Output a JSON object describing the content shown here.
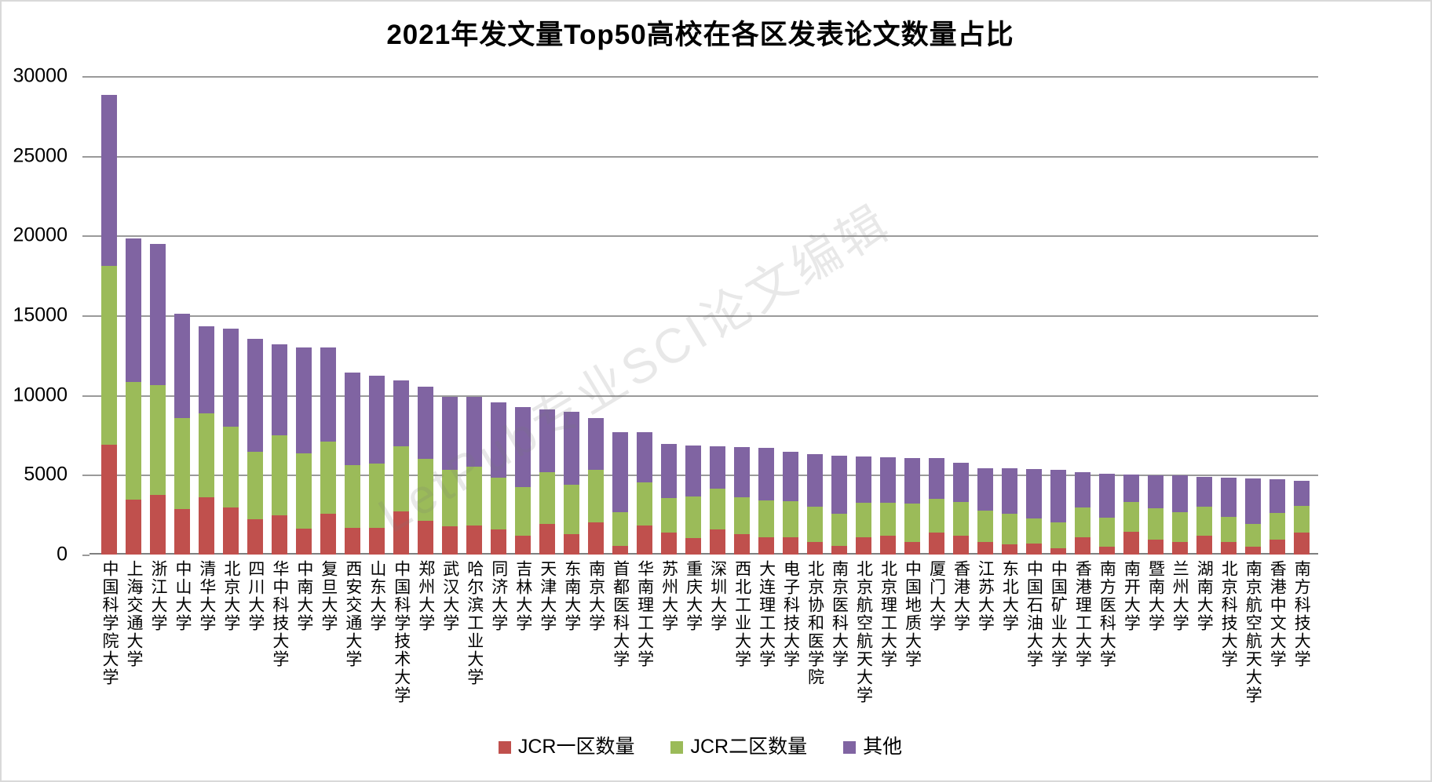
{
  "title": "2021年发文量Top50高校在各区发表论文数量占比",
  "watermark_text": "LetPub专业SCI论文编辑",
  "colors": {
    "jcr1": "#C0504D",
    "jcr2": "#9BBB59",
    "other": "#8064A2",
    "gridline": "#9a9a9a",
    "axis": "#7f7f7f"
  },
  "chart_data": {
    "type": "bar",
    "stacked": true,
    "title": "2021年发文量Top50高校在各区发表论文数量占比",
    "xlabel": "",
    "ylabel": "",
    "ylim": [
      0,
      30000
    ],
    "y_ticks": [
      0,
      5000,
      10000,
      15000,
      20000,
      25000,
      30000
    ],
    "grid": true,
    "legend_position": "bottom",
    "categories": [
      "中国科学院大学",
      "上海交通大学",
      "浙江大学",
      "中山大学",
      "清华大学",
      "北京大学",
      "四川大学",
      "华中科技大学",
      "中南大学",
      "复旦大学",
      "西安交通大学",
      "山东大学",
      "中国科学技术大学",
      "郑州大学",
      "武汉大学",
      "哈尔滨工业大学",
      "同济大学",
      "吉林大学",
      "天津大学",
      "东南大学",
      "南京大学",
      "首都医科大学",
      "华南理工大学",
      "苏州大学",
      "重庆大学",
      "深圳大学",
      "西北工业大学",
      "大连理工大学",
      "电子科技大学",
      "北京协和医学院",
      "南京医科大学",
      "北京航空航天大学",
      "北京理工大学",
      "中国地质大学",
      "厦门大学",
      "香港大学",
      "江苏大学",
      "东北大学",
      "中国石油大学",
      "中国矿业大学",
      "香港理工大学",
      "南方医科大学",
      "南开大学",
      "暨南大学",
      "兰州大学",
      "湖南大学",
      "北京科技大学",
      "南京航空航天大学",
      "香港中文大学",
      "南方科技大学"
    ],
    "series": [
      {
        "name": "JCR一区数量",
        "color": "#C0504D",
        "values": [
          6900,
          3440,
          3720,
          2870,
          3600,
          2950,
          2210,
          2460,
          1610,
          2540,
          1690,
          1690,
          2700,
          2130,
          1750,
          1840,
          1590,
          1180,
          1920,
          1260,
          2000,
          530,
          1840,
          1390,
          1020,
          1590,
          1260,
          1100,
          1100,
          770,
          530,
          1100,
          1180,
          770,
          1390,
          1180,
          770,
          660,
          710,
          410,
          1070,
          490,
          1430,
          940,
          800,
          1160,
          770,
          490,
          940,
          1360
        ]
      },
      {
        "name": "JCR二区数量",
        "color": "#9BBB59",
        "values": [
          11200,
          7360,
          6880,
          5700,
          5260,
          5080,
          4220,
          5000,
          4730,
          4540,
          3930,
          4000,
          4100,
          3850,
          3580,
          3650,
          3240,
          3050,
          3240,
          3120,
          3330,
          2130,
          2700,
          2140,
          2620,
          2540,
          2340,
          2310,
          2260,
          2210,
          2040,
          2130,
          2050,
          2430,
          2090,
          2130,
          1970,
          1890,
          1550,
          1590,
          1890,
          1840,
          1890,
          1970,
          1860,
          1840,
          1580,
          1440,
          1660,
          1670
        ]
      },
      {
        "name": "其他",
        "color": "#8064A2",
        "values": [
          10700,
          9000,
          8900,
          6530,
          5440,
          6120,
          7120,
          5740,
          6660,
          5910,
          5780,
          5510,
          4100,
          4570,
          4570,
          4410,
          4720,
          5000,
          3950,
          4570,
          3240,
          5030,
          3130,
          3400,
          3210,
          2650,
          3140,
          3280,
          3080,
          3320,
          3630,
          2920,
          2870,
          2860,
          2570,
          2460,
          2670,
          2850,
          3100,
          3290,
          2200,
          2750,
          1680,
          2040,
          2290,
          1880,
          2480,
          2820,
          2100,
          1590
        ]
      }
    ]
  }
}
